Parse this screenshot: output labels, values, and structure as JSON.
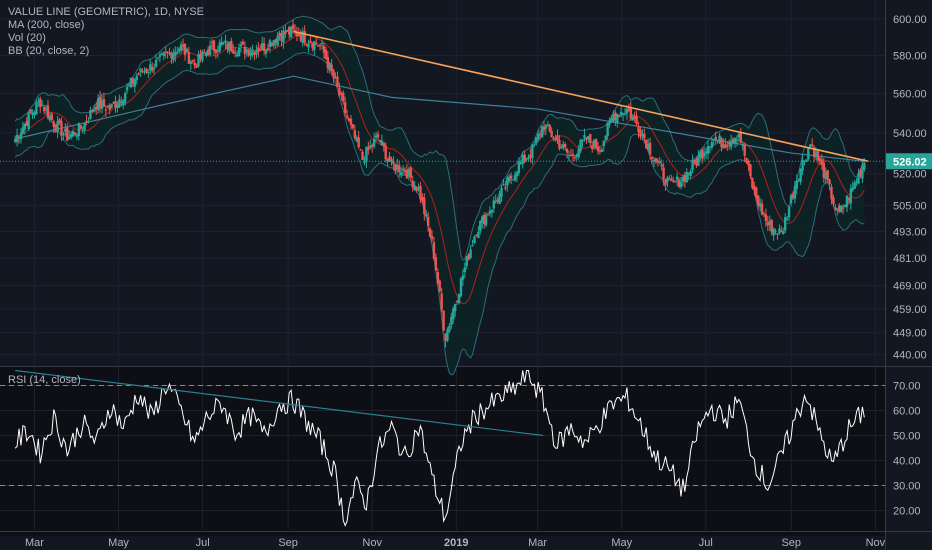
{
  "legend": {
    "symbol": "VALUE LINE (GEOMETRIC), 1D, NYSE",
    "ma": "MA (200, close)",
    "vol": "Vol (20)",
    "bb": "BB (20, close, 2)",
    "rsi": "RSI (14, close)"
  },
  "colors": {
    "background": "#131722",
    "up": "#26a69a",
    "down": "#ef5350",
    "ma200": "#3d7f9a",
    "bb_basis": "#b71c1c",
    "bb_band": "#2a6e7a",
    "bb_fill": "#0d2426",
    "trendline": "#f5a25d",
    "rsi_line": "#ffffff",
    "rsi_trend": "#2a7f8f",
    "price_label": "#26a69a",
    "grid": "#1e2230",
    "axis_text": "#b2b5be"
  },
  "chart_data": [
    {
      "type": "candlestick",
      "title": "VALUE LINE (GEOMETRIC), 1D, NYSE",
      "ylim": [
        437,
        606
      ],
      "y_ticks": [
        "600.00",
        "580.00",
        "560.00",
        "540.00",
        "520.00",
        "505.00",
        "493.00",
        "481.00",
        "469.00",
        "459.00",
        "449.00",
        "440.00"
      ],
      "y_scale": "log",
      "x_ticks": [
        "Mar",
        "May",
        "Jul",
        "Sep",
        "Nov",
        "2019",
        "Mar",
        "May",
        "Jul",
        "Sep",
        "Nov"
      ],
      "last_price": "526.02",
      "close_series": [
        {
          "x": "2018-02-15",
          "y": 537
        },
        {
          "x": "2018-02-25",
          "y": 548
        },
        {
          "x": "2018-03-05",
          "y": 556
        },
        {
          "x": "2018-03-15",
          "y": 545
        },
        {
          "x": "2018-03-25",
          "y": 538
        },
        {
          "x": "2018-04-05",
          "y": 543
        },
        {
          "x": "2018-04-15",
          "y": 555
        },
        {
          "x": "2018-04-25",
          "y": 552
        },
        {
          "x": "2018-05-05",
          "y": 560
        },
        {
          "x": "2018-05-15",
          "y": 570
        },
        {
          "x": "2018-05-25",
          "y": 574
        },
        {
          "x": "2018-06-05",
          "y": 580
        },
        {
          "x": "2018-06-15",
          "y": 585
        },
        {
          "x": "2018-06-25",
          "y": 575
        },
        {
          "x": "2018-07-05",
          "y": 583
        },
        {
          "x": "2018-07-15",
          "y": 586
        },
        {
          "x": "2018-07-25",
          "y": 584
        },
        {
          "x": "2018-08-05",
          "y": 583
        },
        {
          "x": "2018-08-15",
          "y": 585
        },
        {
          "x": "2018-08-25",
          "y": 591
        },
        {
          "x": "2018-09-05",
          "y": 593
        },
        {
          "x": "2018-09-15",
          "y": 589
        },
        {
          "x": "2018-09-25",
          "y": 585
        },
        {
          "x": "2018-10-05",
          "y": 566
        },
        {
          "x": "2018-10-15",
          "y": 545
        },
        {
          "x": "2018-10-25",
          "y": 527
        },
        {
          "x": "2018-11-05",
          "y": 538
        },
        {
          "x": "2018-11-15",
          "y": 524
        },
        {
          "x": "2018-11-25",
          "y": 522
        },
        {
          "x": "2018-12-05",
          "y": 512
        },
        {
          "x": "2018-12-15",
          "y": 486
        },
        {
          "x": "2018-12-24",
          "y": 447
        },
        {
          "x": "2019-01-05",
          "y": 472
        },
        {
          "x": "2019-01-15",
          "y": 493
        },
        {
          "x": "2019-01-25",
          "y": 503
        },
        {
          "x": "2019-02-05",
          "y": 513
        },
        {
          "x": "2019-02-15",
          "y": 524
        },
        {
          "x": "2019-02-25",
          "y": 531
        },
        {
          "x": "2019-03-05",
          "y": 544
        },
        {
          "x": "2019-03-15",
          "y": 536
        },
        {
          "x": "2019-03-25",
          "y": 528
        },
        {
          "x": "2019-04-05",
          "y": 537
        },
        {
          "x": "2019-04-15",
          "y": 532
        },
        {
          "x": "2019-04-25",
          "y": 549
        },
        {
          "x": "2019-05-05",
          "y": 552
        },
        {
          "x": "2019-05-15",
          "y": 541
        },
        {
          "x": "2019-05-25",
          "y": 527
        },
        {
          "x": "2019-06-05",
          "y": 514
        },
        {
          "x": "2019-06-15",
          "y": 518
        },
        {
          "x": "2019-06-25",
          "y": 527
        },
        {
          "x": "2019-07-05",
          "y": 537
        },
        {
          "x": "2019-07-15",
          "y": 535
        },
        {
          "x": "2019-07-25",
          "y": 540
        },
        {
          "x": "2019-08-05",
          "y": 511
        },
        {
          "x": "2019-08-15",
          "y": 496
        },
        {
          "x": "2019-08-25",
          "y": 492
        },
        {
          "x": "2019-09-05",
          "y": 518
        },
        {
          "x": "2019-09-15",
          "y": 535
        },
        {
          "x": "2019-09-25",
          "y": 520
        },
        {
          "x": "2019-10-05",
          "y": 500
        },
        {
          "x": "2019-10-15",
          "y": 512
        },
        {
          "x": "2019-10-24",
          "y": 526
        }
      ],
      "ma200": [
        {
          "x": "2018-02-15",
          "y": 537
        },
        {
          "x": "2018-06-01",
          "y": 554
        },
        {
          "x": "2018-09-05",
          "y": 569
        },
        {
          "x": "2018-11-15",
          "y": 558
        },
        {
          "x": "2019-03-01",
          "y": 552
        },
        {
          "x": "2019-06-01",
          "y": 541
        },
        {
          "x": "2019-09-01",
          "y": 530
        },
        {
          "x": "2019-10-24",
          "y": 526
        }
      ],
      "trendline": [
        {
          "x": "2018-09-05",
          "y": 593
        },
        {
          "x": "2019-10-27",
          "y": 526
        }
      ],
      "bb_width_pct": 2.8
    },
    {
      "type": "line",
      "title": "RSI (14, close)",
      "ylim": [
        13,
        77
      ],
      "y_ticks": [
        "70.00",
        "60.00",
        "50.00",
        "40.00",
        "30.00",
        "20.00"
      ],
      "bands": [
        70,
        30
      ],
      "series": [
        {
          "x": "2018-02-15",
          "y": 47
        },
        {
          "x": "2018-02-25",
          "y": 52
        },
        {
          "x": "2018-03-05",
          "y": 43
        },
        {
          "x": "2018-03-15",
          "y": 57
        },
        {
          "x": "2018-03-25",
          "y": 44
        },
        {
          "x": "2018-04-05",
          "y": 55
        },
        {
          "x": "2018-04-15",
          "y": 47
        },
        {
          "x": "2018-04-25",
          "y": 62
        },
        {
          "x": "2018-05-05",
          "y": 53
        },
        {
          "x": "2018-05-15",
          "y": 67
        },
        {
          "x": "2018-05-25",
          "y": 57
        },
        {
          "x": "2018-06-05",
          "y": 71
        },
        {
          "x": "2018-06-15",
          "y": 60
        },
        {
          "x": "2018-06-25",
          "y": 47
        },
        {
          "x": "2018-07-05",
          "y": 58
        },
        {
          "x": "2018-07-15",
          "y": 63
        },
        {
          "x": "2018-07-25",
          "y": 51
        },
        {
          "x": "2018-08-05",
          "y": 58
        },
        {
          "x": "2018-08-15",
          "y": 50
        },
        {
          "x": "2018-08-25",
          "y": 62
        },
        {
          "x": "2018-09-05",
          "y": 64
        },
        {
          "x": "2018-09-15",
          "y": 55
        },
        {
          "x": "2018-09-25",
          "y": 47
        },
        {
          "x": "2018-10-05",
          "y": 35
        },
        {
          "x": "2018-10-12",
          "y": 16
        },
        {
          "x": "2018-10-20",
          "y": 30
        },
        {
          "x": "2018-10-28",
          "y": 23
        },
        {
          "x": "2018-11-05",
          "y": 44
        },
        {
          "x": "2018-11-15",
          "y": 53
        },
        {
          "x": "2018-11-25",
          "y": 41
        },
        {
          "x": "2018-12-05",
          "y": 54
        },
        {
          "x": "2018-12-15",
          "y": 32
        },
        {
          "x": "2018-12-24",
          "y": 17
        },
        {
          "x": "2019-01-05",
          "y": 48
        },
        {
          "x": "2019-01-15",
          "y": 58
        },
        {
          "x": "2019-01-25",
          "y": 62
        },
        {
          "x": "2019-02-05",
          "y": 66
        },
        {
          "x": "2019-02-15",
          "y": 70
        },
        {
          "x": "2019-02-22",
          "y": 75
        },
        {
          "x": "2019-03-05",
          "y": 64
        },
        {
          "x": "2019-03-15",
          "y": 46
        },
        {
          "x": "2019-03-25",
          "y": 53
        },
        {
          "x": "2019-04-05",
          "y": 47
        },
        {
          "x": "2019-04-15",
          "y": 55
        },
        {
          "x": "2019-04-25",
          "y": 63
        },
        {
          "x": "2019-05-05",
          "y": 65
        },
        {
          "x": "2019-05-15",
          "y": 54
        },
        {
          "x": "2019-05-25",
          "y": 42
        },
        {
          "x": "2019-06-05",
          "y": 36
        },
        {
          "x": "2019-06-15",
          "y": 28
        },
        {
          "x": "2019-06-25",
          "y": 52
        },
        {
          "x": "2019-07-05",
          "y": 61
        },
        {
          "x": "2019-07-15",
          "y": 56
        },
        {
          "x": "2019-07-25",
          "y": 64
        },
        {
          "x": "2019-08-05",
          "y": 40
        },
        {
          "x": "2019-08-15",
          "y": 30
        },
        {
          "x": "2019-08-25",
          "y": 42
        },
        {
          "x": "2019-09-05",
          "y": 58
        },
        {
          "x": "2019-09-12",
          "y": 67
        },
        {
          "x": "2019-09-20",
          "y": 53
        },
        {
          "x": "2019-10-01",
          "y": 38
        },
        {
          "x": "2019-10-12",
          "y": 52
        },
        {
          "x": "2019-10-24",
          "y": 60
        }
      ],
      "trendline": [
        {
          "x": "2018-02-15",
          "y": 76
        },
        {
          "x": "2019-03-05",
          "y": 50
        }
      ]
    }
  ]
}
